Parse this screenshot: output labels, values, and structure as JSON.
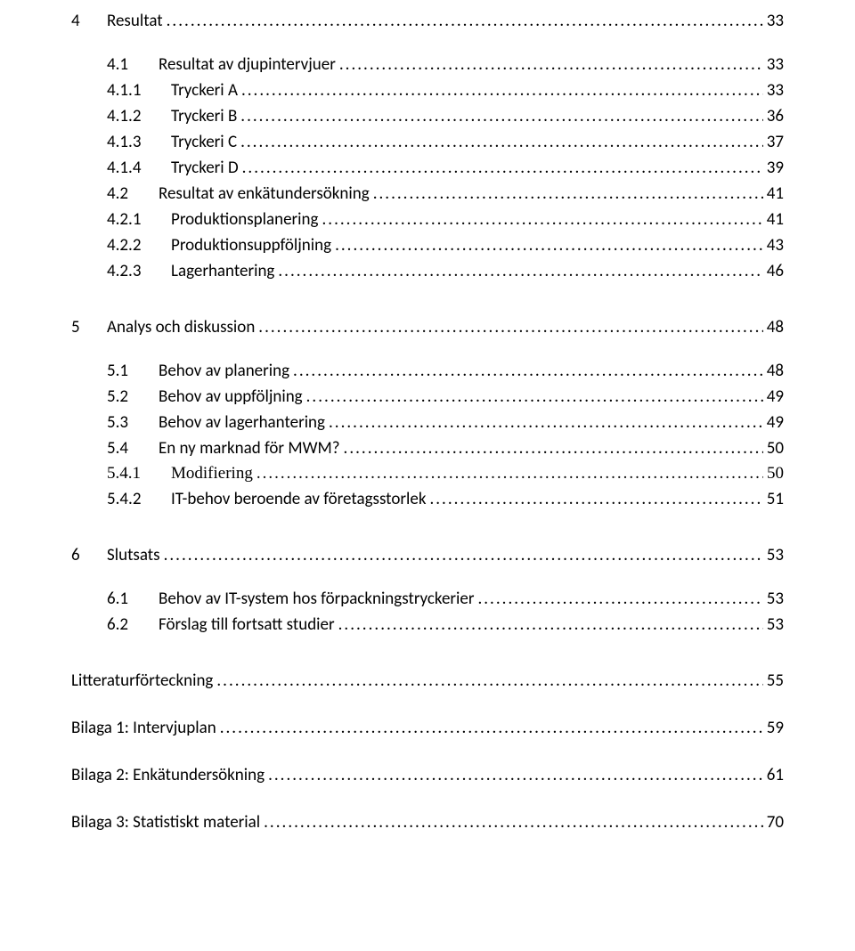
{
  "toc": [
    {
      "cls": "lvl1",
      "num": "4",
      "label": "Resultat",
      "page": "33"
    },
    {
      "cls": "lvl2",
      "num": "4.1",
      "label": "Resultat av djupintervjuer",
      "page": "33"
    },
    {
      "cls": "lvl3",
      "num": "4.1.1",
      "label": "Tryckeri A",
      "page": "33"
    },
    {
      "cls": "lvl3",
      "num": "4.1.2",
      "label": "Tryckeri B",
      "page": "36"
    },
    {
      "cls": "lvl3",
      "num": "4.1.3",
      "label": "Tryckeri C",
      "page": "37"
    },
    {
      "cls": "lvl3",
      "num": "4.1.4",
      "label": "Tryckeri D",
      "page": "39"
    },
    {
      "cls": "lvl2",
      "num": "4.2",
      "label": "Resultat av enkätundersökning",
      "page": "41"
    },
    {
      "cls": "lvl3",
      "num": "4.2.1",
      "label": "Produktionsplanering",
      "page": "41"
    },
    {
      "cls": "lvl3",
      "num": "4.2.2",
      "label": "Produktionsuppföljning",
      "page": "43"
    },
    {
      "cls": "lvl3",
      "num": "4.2.3",
      "label": "Lagerhantering",
      "page": "46"
    },
    {
      "gap": "big-gap"
    },
    {
      "cls": "lvl1",
      "num": "5",
      "label": "Analys och diskussion",
      "page": "48"
    },
    {
      "cls": "lvl2",
      "num": "5.1",
      "label": "Behov av planering",
      "page": "48"
    },
    {
      "cls": "lvl2",
      "num": "5.2",
      "label": "Behov av uppföljning",
      "page": "49"
    },
    {
      "cls": "lvl2",
      "num": "5.3",
      "label": "Behov av lagerhantering",
      "page": "49"
    },
    {
      "cls": "lvl2",
      "num": "5.4",
      "label": "En ny marknad för MWM?",
      "page": "50"
    },
    {
      "cls": "lvl3 serif",
      "num": "5.4.1",
      "label": "Modifiering",
      "page": "50"
    },
    {
      "cls": "lvl3",
      "num": "5.4.2",
      "label": "IT-behov beroende av företagsstorlek",
      "page": "51"
    },
    {
      "gap": "big-gap"
    },
    {
      "cls": "lvl1",
      "num": "6",
      "label": "Slutsats",
      "page": "53"
    },
    {
      "cls": "lvl2",
      "num": "6.1",
      "label": "Behov av IT-system hos förpackningstryckerier",
      "page": "53"
    },
    {
      "cls": "lvl2",
      "num": "6.2",
      "label": "Förslag till fortsatt studier",
      "page": "53"
    },
    {
      "gap": "big-gap"
    },
    {
      "cls": "plain",
      "label": "Litteraturförteckning",
      "page": "55"
    },
    {
      "cls": "plain",
      "label": "Bilaga 1: Intervjuplan",
      "page": "59"
    },
    {
      "cls": "plain",
      "label": "Bilaga 2: Enkätundersökning",
      "page": "61"
    },
    {
      "cls": "plain",
      "label": "Bilaga 3: Statistiskt material",
      "page": "70"
    }
  ]
}
